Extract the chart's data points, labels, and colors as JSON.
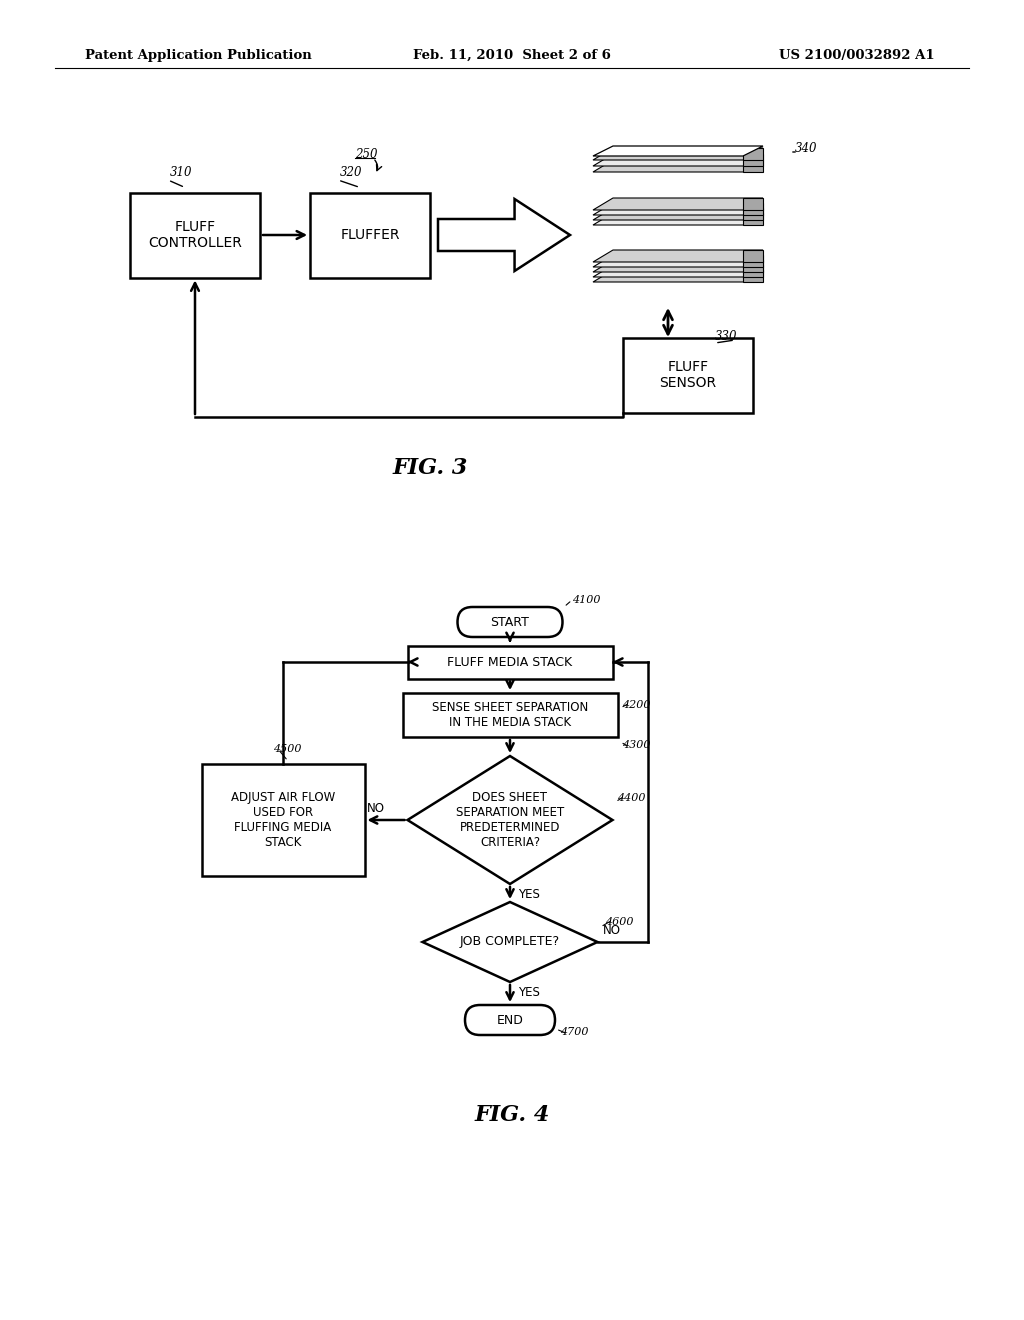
{
  "bg_color": "#ffffff",
  "header_left": "Patent Application Publication",
  "header_center": "Feb. 11, 2010  Sheet 2 of 6",
  "header_right": "US 2100/0032892 A1",
  "fig3_label": "FIG. 3",
  "fig4_label": "FIG. 4"
}
